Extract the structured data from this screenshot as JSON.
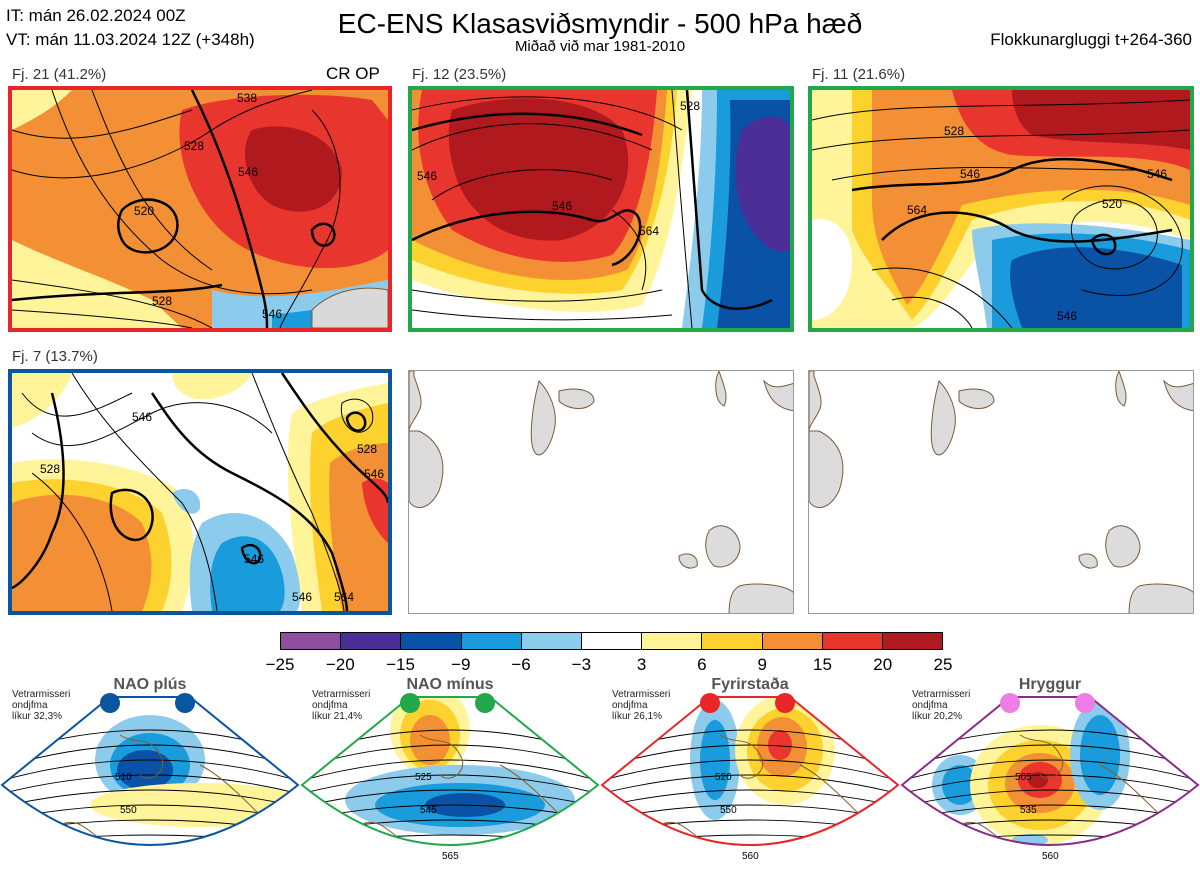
{
  "header": {
    "it": "IT: mán 26.02.2024 00Z",
    "vt": "VT: mán 11.03.2024 12Z  (+348h)",
    "title": "EC-ENS Klasasviðsmyndir - 500 hPa hæð",
    "subtitle": "Miðað við mar 1981-2010",
    "window": "Flokkunargluggi t+264-360"
  },
  "panels": [
    {
      "label": "Fj. 21 (41.2%)",
      "extra": "CR OP",
      "border": "#e8262a",
      "contours": [
        "520",
        "528",
        "528",
        "546",
        "546",
        "538"
      ]
    },
    {
      "label": "Fj. 12 (23.5%)",
      "border": "#22a84a",
      "contours": [
        "546",
        "564",
        "546",
        "528"
      ]
    },
    {
      "label": "Fj. 11 (21.6%)",
      "border": "#22a84a",
      "contours": [
        "528",
        "546",
        "564",
        "520",
        "546",
        "546"
      ]
    },
    {
      "label": "Fj. 7 (13.7%)",
      "border": "#0a55a0",
      "contours": [
        "546",
        "528",
        "528",
        "546",
        "546",
        "564",
        "546"
      ]
    }
  ],
  "colorbar": {
    "colors": [
      "#8e4fa0",
      "#4b2e96",
      "#0a52a5",
      "#1a9bdc",
      "#8ccbec",
      "#ffffff",
      "#fff49a",
      "#fdd12e",
      "#f39035",
      "#e8352e",
      "#b01a1f"
    ],
    "ticks": [
      "−25",
      "−20",
      "−15",
      "−9",
      "−6",
      "−3",
      "3",
      "6",
      "9",
      "15",
      "20",
      "25"
    ]
  },
  "regimes": [
    {
      "title": "NAO plús",
      "note": [
        "Vetrarmisseri",
        "ondjfma",
        "líkur 32,3%"
      ],
      "dot_color": "#0a55a0",
      "frame": "#0a55a0",
      "labels": [
        "510",
        "550"
      ]
    },
    {
      "title": "NAO mínus",
      "note": [
        "Vetrarmisseri",
        "ondjfma",
        "líkur 21,4%"
      ],
      "dot_color": "#22a84a",
      "frame": "#22a84a",
      "labels": [
        "525",
        "545",
        "565"
      ]
    },
    {
      "title": "Fyrirstaða",
      "note": [
        "Vetrarmisseri",
        "ondjfma",
        "líkur 26,1%"
      ],
      "dot_color": "#e8262a",
      "frame": "#e8262a",
      "labels": [
        "520",
        "550",
        "560"
      ]
    },
    {
      "title": "Hryggur",
      "note": [
        "Vetrarmisseri",
        "ondjfma",
        "líkur 20,2%"
      ],
      "dot_color": "#ee7de6",
      "frame": "#8a2b8c",
      "labels": [
        "505",
        "535",
        "560"
      ]
    }
  ]
}
